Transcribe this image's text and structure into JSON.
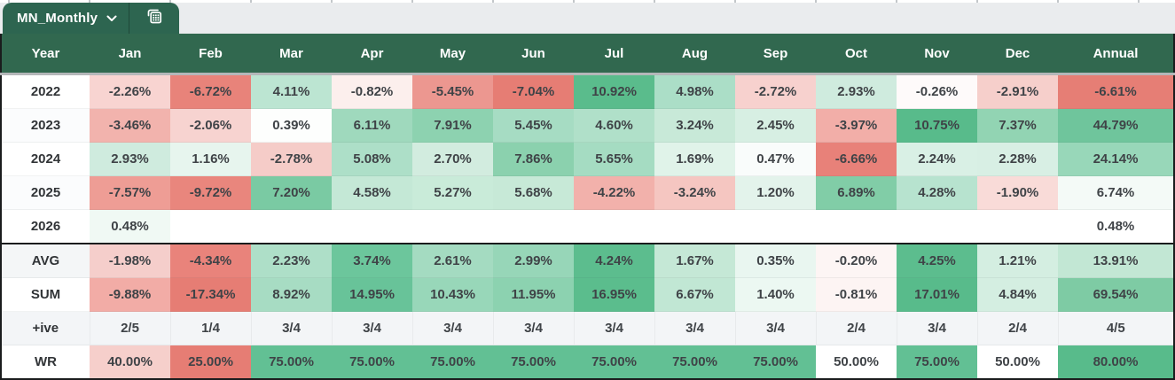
{
  "tab": {
    "label": "MN_Monthly"
  },
  "icons": {
    "chevron": "chevron-down-icon",
    "sheet": "spreadsheet-grid-icon"
  },
  "colors": {
    "tabbar_bg": "#eaecee",
    "tab_bg": "#2d6550",
    "header_bg": "#31684f",
    "scale_red": "#e67c73",
    "scale_green": "#57bb8a",
    "text_dark": "#3f4347",
    "label_text": "#313437",
    "border_dark": "#1a1c1d",
    "grayline": "#b4b7b9",
    "banded_row_bg": "#f3f5f7"
  },
  "table": {
    "columns": [
      "Year",
      "Jan",
      "Feb",
      "Mar",
      "Apr",
      "May",
      "Jun",
      "Jul",
      "Aug",
      "Sep",
      "Oct",
      "Nov",
      "Dec",
      "Annual"
    ],
    "rows": [
      {
        "label": "2022",
        "label_bg": "#ffffff",
        "cells": [
          {
            "t": "-2.26%",
            "bg": "#f8d4d1"
          },
          {
            "t": "-6.72%",
            "bg": "#e8837a"
          },
          {
            "t": "4.11%",
            "bg": "#bce5d2"
          },
          {
            "t": "-0.82%",
            "bg": "#fcefed"
          },
          {
            "t": "-5.45%",
            "bg": "#ec9790"
          },
          {
            "t": "-7.04%",
            "bg": "#e67d74"
          },
          {
            "t": "10.92%",
            "bg": "#5abc8c"
          },
          {
            "t": "4.98%",
            "bg": "#abdec7"
          },
          {
            "t": "-2.72%",
            "bg": "#f7d1ce"
          },
          {
            "t": "2.93%",
            "bg": "#cfebde"
          },
          {
            "t": "-0.26%",
            "bg": "#fefafa"
          },
          {
            "t": "-2.91%",
            "bg": "#f6cfcb"
          },
          {
            "t": "-6.61%",
            "bg": "#e67e75"
          }
        ]
      },
      {
        "label": "2023",
        "label_bg": "#fbfcfd",
        "cells": [
          {
            "t": "-3.46%",
            "bg": "#f2b3ad"
          },
          {
            "t": "-2.06%",
            "bg": "#f7d3d0"
          },
          {
            "t": "0.39%",
            "bg": "#fdfefd"
          },
          {
            "t": "6.11%",
            "bg": "#9fd9bd"
          },
          {
            "t": "7.91%",
            "bg": "#8dd2b0"
          },
          {
            "t": "5.45%",
            "bg": "#a6dcc3"
          },
          {
            "t": "4.60%",
            "bg": "#b0e0c9"
          },
          {
            "t": "3.24%",
            "bg": "#c8e9d8"
          },
          {
            "t": "2.45%",
            "bg": "#d7efe3"
          },
          {
            "t": "-3.97%",
            "bg": "#f2aea8"
          },
          {
            "t": "10.75%",
            "bg": "#58bb8b"
          },
          {
            "t": "7.37%",
            "bg": "#92d4b3"
          },
          {
            "t": "44.79%",
            "bg": "#6fc59c"
          }
        ]
      },
      {
        "label": "2024",
        "label_bg": "#ffffff",
        "cells": [
          {
            "t": "2.93%",
            "bg": "#cfebde"
          },
          {
            "t": "1.16%",
            "bg": "#e7f5ee"
          },
          {
            "t": "-2.78%",
            "bg": "#f5ccc8"
          },
          {
            "t": "5.08%",
            "bg": "#addfc8"
          },
          {
            "t": "2.70%",
            "bg": "#d2ecdf"
          },
          {
            "t": "7.86%",
            "bg": "#8bd1ae"
          },
          {
            "t": "5.65%",
            "bg": "#a5dcc2"
          },
          {
            "t": "1.69%",
            "bg": "#e0f3e9"
          },
          {
            "t": "0.47%",
            "bg": "#f9fcfb"
          },
          {
            "t": "-6.66%",
            "bg": "#e88179"
          },
          {
            "t": "2.24%",
            "bg": "#d9f0e5"
          },
          {
            "t": "2.28%",
            "bg": "#d8efe4"
          },
          {
            "t": "24.14%",
            "bg": "#98d7b9"
          }
        ]
      },
      {
        "label": "2025",
        "label_bg": "#fbfcfd",
        "cells": [
          {
            "t": "-7.57%",
            "bg": "#ee9d95"
          },
          {
            "t": "-9.72%",
            "bg": "#e9867d"
          },
          {
            "t": "7.20%",
            "bg": "#7acaa3"
          },
          {
            "t": "4.58%",
            "bg": "#c4e8d6"
          },
          {
            "t": "5.27%",
            "bg": "#c9ebd9"
          },
          {
            "t": "5.68%",
            "bg": "#c7e9d7"
          },
          {
            "t": "-4.22%",
            "bg": "#f2b1ab"
          },
          {
            "t": "-3.24%",
            "bg": "#f5c6c1"
          },
          {
            "t": "1.20%",
            "bg": "#e3f3eb"
          },
          {
            "t": "6.89%",
            "bg": "#81cda7"
          },
          {
            "t": "4.28%",
            "bg": "#b7e3cf"
          },
          {
            "t": "-1.90%",
            "bg": "#f9dbd8"
          },
          {
            "t": "6.74%",
            "bg": "#f4faf7"
          }
        ]
      },
      {
        "label": "2026",
        "label_bg": "#ffffff",
        "cells": [
          {
            "t": "0.48%",
            "bg": "#f0f9f4"
          },
          {
            "t": "",
            "bg": "#ffffff"
          },
          {
            "t": "",
            "bg": "#ffffff"
          },
          {
            "t": "",
            "bg": "#ffffff"
          },
          {
            "t": "",
            "bg": "#ffffff"
          },
          {
            "t": "",
            "bg": "#ffffff"
          },
          {
            "t": "",
            "bg": "#ffffff"
          },
          {
            "t": "",
            "bg": "#ffffff"
          },
          {
            "t": "",
            "bg": "#ffffff"
          },
          {
            "t": "",
            "bg": "#ffffff"
          },
          {
            "t": "",
            "bg": "#ffffff"
          },
          {
            "t": "",
            "bg": "#ffffff"
          },
          {
            "t": "0.48%",
            "bg": "#ffffff"
          }
        ]
      },
      {
        "label": "AVG",
        "label_bg": "#f4f6f7",
        "separator_above": true,
        "cells": [
          {
            "t": "-1.98%",
            "bg": "#f5cecb"
          },
          {
            "t": "-4.34%",
            "bg": "#e9837b"
          },
          {
            "t": "2.23%",
            "bg": "#aedfc8"
          },
          {
            "t": "3.74%",
            "bg": "#6cc69c"
          },
          {
            "t": "2.61%",
            "bg": "#a4dbc1"
          },
          {
            "t": "2.99%",
            "bg": "#97d6b8"
          },
          {
            "t": "4.24%",
            "bg": "#5cbd8e"
          },
          {
            "t": "1.67%",
            "bg": "#c5e8d6"
          },
          {
            "t": "0.35%",
            "bg": "#e9f6f0"
          },
          {
            "t": "-0.20%",
            "bg": "#fdf5f4"
          },
          {
            "t": "4.25%",
            "bg": "#5cbd8e"
          },
          {
            "t": "1.21%",
            "bg": "#d4eee1"
          },
          {
            "t": "13.91%",
            "bg": "#c2e7d4"
          }
        ]
      },
      {
        "label": "SUM",
        "label_bg": "#ffffff",
        "cells": [
          {
            "t": "-9.88%",
            "bg": "#f2aca6"
          },
          {
            "t": "-17.34%",
            "bg": "#e67d74"
          },
          {
            "t": "8.92%",
            "bg": "#a7dcc3"
          },
          {
            "t": "14.95%",
            "bg": "#68c399"
          },
          {
            "t": "10.43%",
            "bg": "#98d7b9"
          },
          {
            "t": "11.95%",
            "bg": "#8cd2b0"
          },
          {
            "t": "16.95%",
            "bg": "#5bbd8d"
          },
          {
            "t": "6.67%",
            "bg": "#c1e7d4"
          },
          {
            "t": "1.40%",
            "bg": "#ecf8f2"
          },
          {
            "t": "-0.81%",
            "bg": "#fdf4f3"
          },
          {
            "t": "17.01%",
            "bg": "#58bb8b"
          },
          {
            "t": "4.84%",
            "bg": "#d4eee1"
          },
          {
            "t": "69.54%",
            "bg": "#7ecba4"
          }
        ]
      },
      {
        "label": "+ive",
        "label_bg": "#f3f5f7",
        "banded": true,
        "cells": [
          {
            "t": "2/5",
            "bg": "#f3f5f7"
          },
          {
            "t": "1/4",
            "bg": "#f3f5f7"
          },
          {
            "t": "3/4",
            "bg": "#f3f5f7"
          },
          {
            "t": "3/4",
            "bg": "#f3f5f7"
          },
          {
            "t": "3/4",
            "bg": "#f3f5f7"
          },
          {
            "t": "3/4",
            "bg": "#f3f5f7"
          },
          {
            "t": "3/4",
            "bg": "#f3f5f7"
          },
          {
            "t": "3/4",
            "bg": "#f3f5f7"
          },
          {
            "t": "3/4",
            "bg": "#f3f5f7"
          },
          {
            "t": "2/4",
            "bg": "#f3f5f7"
          },
          {
            "t": "3/4",
            "bg": "#f3f5f7"
          },
          {
            "t": "2/4",
            "bg": "#f3f5f7"
          },
          {
            "t": "4/5",
            "bg": "#f3f5f7"
          }
        ]
      },
      {
        "label": "WR",
        "label_bg": "#ffffff",
        "cells": [
          {
            "t": "40.00%",
            "bg": "#f6cfcb"
          },
          {
            "t": "25.00%",
            "bg": "#e67d74"
          },
          {
            "t": "75.00%",
            "bg": "#62c094"
          },
          {
            "t": "75.00%",
            "bg": "#62c094"
          },
          {
            "t": "75.00%",
            "bg": "#62c094"
          },
          {
            "t": "75.00%",
            "bg": "#62c094"
          },
          {
            "t": "75.00%",
            "bg": "#62c094"
          },
          {
            "t": "75.00%",
            "bg": "#62c094"
          },
          {
            "t": "75.00%",
            "bg": "#62c094"
          },
          {
            "t": "50.00%",
            "bg": "#ffffff"
          },
          {
            "t": "75.00%",
            "bg": "#62c094"
          },
          {
            "t": "50.00%",
            "bg": "#ffffff"
          },
          {
            "t": "80.00%",
            "bg": "#58bb8b"
          }
        ]
      }
    ]
  }
}
